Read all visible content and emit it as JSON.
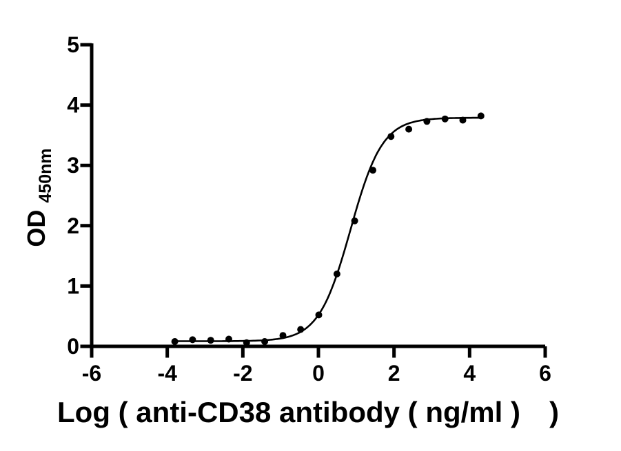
{
  "chart_data": {
    "type": "scatter",
    "title": "",
    "xlabel": "Log ( anti-CD38 antibody ( ng/ml ) )",
    "ylabel_main": "OD",
    "ylabel_sub": "450nm",
    "xlim": [
      -6,
      6
    ],
    "ylim": [
      0,
      5
    ],
    "x_ticks": [
      -6,
      -4,
      -2,
      0,
      2,
      4,
      6
    ],
    "y_ticks": [
      0,
      1,
      2,
      3,
      4,
      5
    ],
    "grid": false,
    "legend": false,
    "color": "#000000",
    "marker": "filled-circle",
    "points": [
      {
        "x": -3.8,
        "y": 0.08
      },
      {
        "x": -3.33,
        "y": 0.11
      },
      {
        "x": -2.85,
        "y": 0.1
      },
      {
        "x": -2.37,
        "y": 0.12
      },
      {
        "x": -1.9,
        "y": 0.06
      },
      {
        "x": -1.42,
        "y": 0.08
      },
      {
        "x": -0.94,
        "y": 0.18
      },
      {
        "x": -0.47,
        "y": 0.28
      },
      {
        "x": 0.01,
        "y": 0.52
      },
      {
        "x": 0.49,
        "y": 1.2
      },
      {
        "x": 0.96,
        "y": 2.08
      },
      {
        "x": 1.44,
        "y": 2.92
      },
      {
        "x": 1.92,
        "y": 3.48
      },
      {
        "x": 2.39,
        "y": 3.6
      },
      {
        "x": 2.87,
        "y": 3.73
      },
      {
        "x": 3.35,
        "y": 3.77
      },
      {
        "x": 3.82,
        "y": 3.75
      },
      {
        "x": 4.3,
        "y": 3.82
      }
    ],
    "fit": {
      "model": "4PL",
      "bottom": 0.085,
      "top": 3.79,
      "logEC50": 0.85,
      "hill": 1.03,
      "x_start": -3.8,
      "x_end": 4.3
    }
  }
}
